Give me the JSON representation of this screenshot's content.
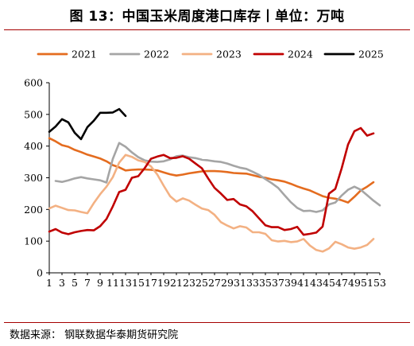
{
  "title": "图 13：中国玉米周度港口库存丨单位：万吨",
  "source": "数据来源：  钢联数据华泰期货研究院",
  "chart_data": {
    "type": "line",
    "xlabel": "",
    "ylabel": "",
    "ylim": [
      0,
      600
    ],
    "yticks": [
      0,
      100,
      200,
      300,
      400,
      500,
      600
    ],
    "xlim": [
      1,
      53
    ],
    "xticks": [
      1,
      3,
      5,
      7,
      9,
      11,
      13,
      15,
      17,
      19,
      21,
      23,
      25,
      27,
      29,
      31,
      33,
      35,
      37,
      39,
      41,
      43,
      45,
      47,
      49,
      51,
      53
    ],
    "grid": false,
    "legend": "top",
    "series": [
      {
        "name": "2021",
        "color": "#e46c1f",
        "x": [
          1,
          2,
          3,
          4,
          5,
          6,
          7,
          8,
          9,
          10,
          11,
          12,
          13,
          14,
          15,
          16,
          17,
          18,
          19,
          20,
          21,
          22,
          23,
          24,
          25,
          26,
          27,
          28,
          29,
          30,
          31,
          32,
          33,
          34,
          35,
          36,
          37,
          38,
          39,
          40,
          41,
          42,
          43,
          44,
          45,
          46,
          47,
          48,
          49,
          50,
          51,
          52
        ],
        "y": [
          425,
          415,
          403,
          398,
          388,
          381,
          373,
          367,
          361,
          352,
          340,
          333,
          323,
          325,
          326,
          326,
          325,
          323,
          317,
          311,
          307,
          310,
          314,
          317,
          320,
          321,
          321,
          320,
          318,
          315,
          314,
          313,
          308,
          303,
          300,
          295,
          292,
          288,
          281,
          273,
          266,
          260,
          251,
          242,
          237,
          234,
          229,
          222,
          240,
          260,
          272,
          286
        ]
      },
      {
        "name": "2022",
        "color": "#a5a5a5",
        "x": [
          2,
          3,
          4,
          5,
          6,
          7,
          8,
          9,
          10,
          11,
          12,
          13,
          14,
          15,
          16,
          17,
          18,
          19,
          20,
          21,
          22,
          23,
          24,
          25,
          26,
          27,
          28,
          29,
          30,
          31,
          32,
          33,
          34,
          35,
          36,
          37,
          38,
          39,
          40,
          41,
          42,
          43,
          44,
          45,
          46,
          47,
          48,
          49,
          50,
          51,
          52,
          53
        ],
        "y": [
          290,
          287,
          292,
          298,
          302,
          298,
          295,
          292,
          285,
          360,
          410,
          398,
          380,
          365,
          355,
          351,
          350,
          352,
          358,
          368,
          370,
          365,
          362,
          357,
          355,
          352,
          350,
          345,
          338,
          332,
          328,
          319,
          309,
          296,
          283,
          268,
          245,
          223,
          205,
          195,
          196,
          192,
          197,
          216,
          222,
          244,
          262,
          272,
          262,
          245,
          228,
          213
        ]
      },
      {
        "name": "2023",
        "color": "#f3b183",
        "x": [
          1,
          2,
          3,
          4,
          5,
          6,
          7,
          8,
          9,
          10,
          11,
          12,
          13,
          14,
          15,
          16,
          17,
          18,
          19,
          20,
          21,
          22,
          23,
          24,
          25,
          26,
          27,
          28,
          29,
          30,
          31,
          32,
          33,
          34,
          35,
          36,
          37,
          38,
          39,
          40,
          41,
          42,
          43,
          44,
          45,
          46,
          47,
          48,
          49,
          50,
          51,
          52
        ],
        "y": [
          203,
          212,
          205,
          198,
          197,
          192,
          188,
          220,
          248,
          272,
          302,
          348,
          372,
          366,
          355,
          350,
          336,
          310,
          275,
          242,
          225,
          235,
          228,
          215,
          203,
          198,
          183,
          160,
          149,
          140,
          147,
          143,
          128,
          128,
          123,
          103,
          99,
          101,
          97,
          99,
          107,
          86,
          72,
          67,
          77,
          98,
          90,
          80,
          76,
          80,
          88,
          107
        ]
      },
      {
        "name": "2024",
        "color": "#c00000",
        "x": [
          1,
          2,
          3,
          4,
          5,
          6,
          7,
          8,
          9,
          10,
          11,
          12,
          13,
          14,
          15,
          16,
          17,
          18,
          19,
          20,
          21,
          22,
          23,
          24,
          25,
          26,
          27,
          28,
          29,
          30,
          31,
          32,
          33,
          34,
          35,
          36,
          37,
          38,
          39,
          40,
          41,
          42,
          43,
          44,
          45,
          46,
          47,
          48,
          49,
          50,
          51,
          52
        ],
        "y": [
          130,
          138,
          127,
          122,
          128,
          132,
          135,
          134,
          147,
          170,
          210,
          255,
          262,
          300,
          305,
          330,
          360,
          367,
          372,
          362,
          363,
          368,
          360,
          345,
          330,
          298,
          268,
          250,
          230,
          233,
          216,
          210,
          194,
          172,
          150,
          144,
          144,
          135,
          138,
          145,
          120,
          123,
          127,
          146,
          250,
          265,
          330,
          405,
          447,
          457,
          433,
          440
        ]
      },
      {
        "name": "2025",
        "color": "#000000",
        "x": [
          1,
          2,
          3,
          4,
          5,
          6,
          7,
          8,
          9,
          10,
          11,
          12,
          13
        ],
        "y": [
          445,
          462,
          485,
          475,
          442,
          422,
          460,
          480,
          505,
          505,
          506,
          517,
          495
        ]
      }
    ]
  }
}
